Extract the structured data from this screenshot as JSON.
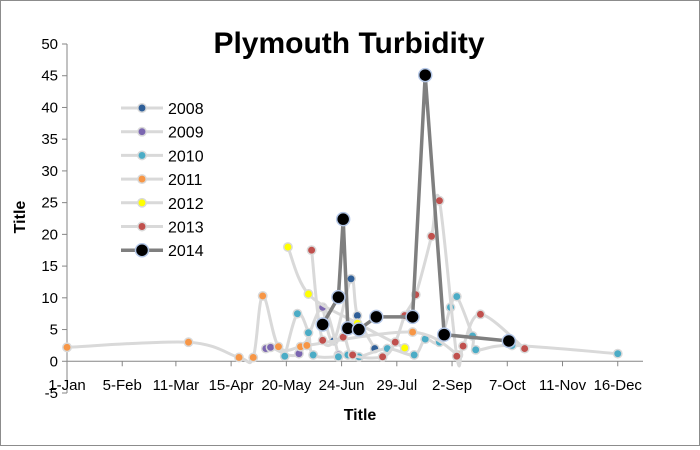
{
  "chart_data": {
    "type": "line",
    "title": "Plymouth Turbidity",
    "xlabel": "Title",
    "ylabel": "Title",
    "x_axis": "date (day of year)",
    "xlim": [
      "1-Jan",
      "31-Dec"
    ],
    "ylim": [
      -5,
      50
    ],
    "x_tick_labels": [
      "1-Jan",
      "5-Feb",
      "11-Mar",
      "15-Apr",
      "20-May",
      "24-Jun",
      "29-Jul",
      "2-Sep",
      "7-Oct",
      "11-Nov",
      "16-Dec"
    ],
    "y_tick_labels": [
      "-5",
      "0",
      "5",
      "10",
      "15",
      "20",
      "25",
      "30",
      "35",
      "40",
      "45",
      "50"
    ],
    "grid": false,
    "legend_position": "left, inside plot",
    "series": [
      {
        "name": "2008",
        "color": "#2f5f98",
        "points": [
          {
            "x": "12-Jun",
            "y": 8.5
          },
          {
            "x": "19-Jun",
            "y": 3.2
          },
          {
            "x": "30-Jun",
            "y": 13.0
          },
          {
            "x": "4-Jul",
            "y": 7.2
          },
          {
            "x": "15-Jul",
            "y": 2.0
          }
        ]
      },
      {
        "name": "2009",
        "color": "#7b66b0",
        "points": [
          {
            "x": "7-May",
            "y": 2.0
          },
          {
            "x": "10-May",
            "y": 2.2
          },
          {
            "x": "28-May",
            "y": 1.2
          },
          {
            "x": "12-Jun",
            "y": 8.5
          },
          {
            "x": "22-Jun",
            "y": 1.0
          }
        ]
      },
      {
        "name": "2010",
        "color": "#4bacc6",
        "points": [
          {
            "x": "19-May",
            "y": 0.8
          },
          {
            "x": "27-May",
            "y": 7.5
          },
          {
            "x": "3-Jun",
            "y": 4.5
          },
          {
            "x": "6-Jun",
            "y": 1.0
          },
          {
            "x": "22-Jun",
            "y": 0.7
          },
          {
            "x": "28-Jun",
            "y": 1.0
          },
          {
            "x": "5-Jul",
            "y": 0.7
          },
          {
            "x": "23-Jul",
            "y": 2.0
          },
          {
            "x": "9-Aug",
            "y": 1.0
          },
          {
            "x": "16-Aug",
            "y": 3.5
          },
          {
            "x": "25-Aug",
            "y": 3.0
          },
          {
            "x": "1-Sep",
            "y": 8.5
          },
          {
            "x": "5-Sep",
            "y": 10.2
          },
          {
            "x": "15-Sep",
            "y": 4.0
          },
          {
            "x": "17-Sep",
            "y": 1.8
          },
          {
            "x": "10-Oct",
            "y": 2.5
          },
          {
            "x": "16-Dec",
            "y": 1.2
          }
        ]
      },
      {
        "name": "2011",
        "color": "#f79646",
        "points": [
          {
            "x": "1-Jan",
            "y": 2.2
          },
          {
            "x": "19-Mar",
            "y": 3.0
          },
          {
            "x": "20-Apr",
            "y": 0.6
          },
          {
            "x": "29-Apr",
            "y": 0.6
          },
          {
            "x": "5-May",
            "y": 10.3
          },
          {
            "x": "15-May",
            "y": 2.3
          },
          {
            "x": "29-May",
            "y": 2.3
          },
          {
            "x": "2-Jun",
            "y": 2.5
          },
          {
            "x": "8-Aug",
            "y": 4.6
          },
          {
            "x": "6-Sep",
            "y": 1.0
          }
        ]
      },
      {
        "name": "2012",
        "color": "#ffff00",
        "points": [
          {
            "x": "21-May",
            "y": 18.0
          },
          {
            "x": "3-Jun",
            "y": 10.6
          },
          {
            "x": "4-Jul",
            "y": 6.0
          },
          {
            "x": "3-Aug",
            "y": 2.1
          }
        ]
      },
      {
        "name": "2013",
        "color": "#c0504d",
        "points": [
          {
            "x": "5-Jun",
            "y": 17.5
          },
          {
            "x": "12-Jun",
            "y": 3.3
          },
          {
            "x": "25-Jun",
            "y": 3.8
          },
          {
            "x": "1-Jul",
            "y": 1.0
          },
          {
            "x": "20-Jul",
            "y": 0.7
          },
          {
            "x": "28-Jul",
            "y": 3.0
          },
          {
            "x": "3-Aug",
            "y": 7.2
          },
          {
            "x": "10-Aug",
            "y": 10.5
          },
          {
            "x": "20-Aug",
            "y": 19.7
          },
          {
            "x": "25-Aug",
            "y": 25.3
          },
          {
            "x": "5-Sep",
            "y": 0.8
          },
          {
            "x": "9-Sep",
            "y": 2.4
          },
          {
            "x": "20-Sep",
            "y": 7.4
          },
          {
            "x": "18-Oct",
            "y": 2.0
          }
        ]
      },
      {
        "name": "2014",
        "color": "#000000",
        "points": [
          {
            "x": "12-Jun",
            "y": 5.8
          },
          {
            "x": "22-Jun",
            "y": 10.1
          },
          {
            "x": "25-Jun",
            "y": 22.4
          },
          {
            "x": "28-Jun",
            "y": 5.2
          },
          {
            "x": "5-Jul",
            "y": 5.0
          },
          {
            "x": "16-Jul",
            "y": 7.0
          },
          {
            "x": "8-Aug",
            "y": 7.0
          },
          {
            "x": "16-Aug",
            "y": 45.1
          },
          {
            "x": "28-Aug",
            "y": 4.2
          },
          {
            "x": "8-Oct",
            "y": 3.2
          }
        ]
      }
    ]
  }
}
